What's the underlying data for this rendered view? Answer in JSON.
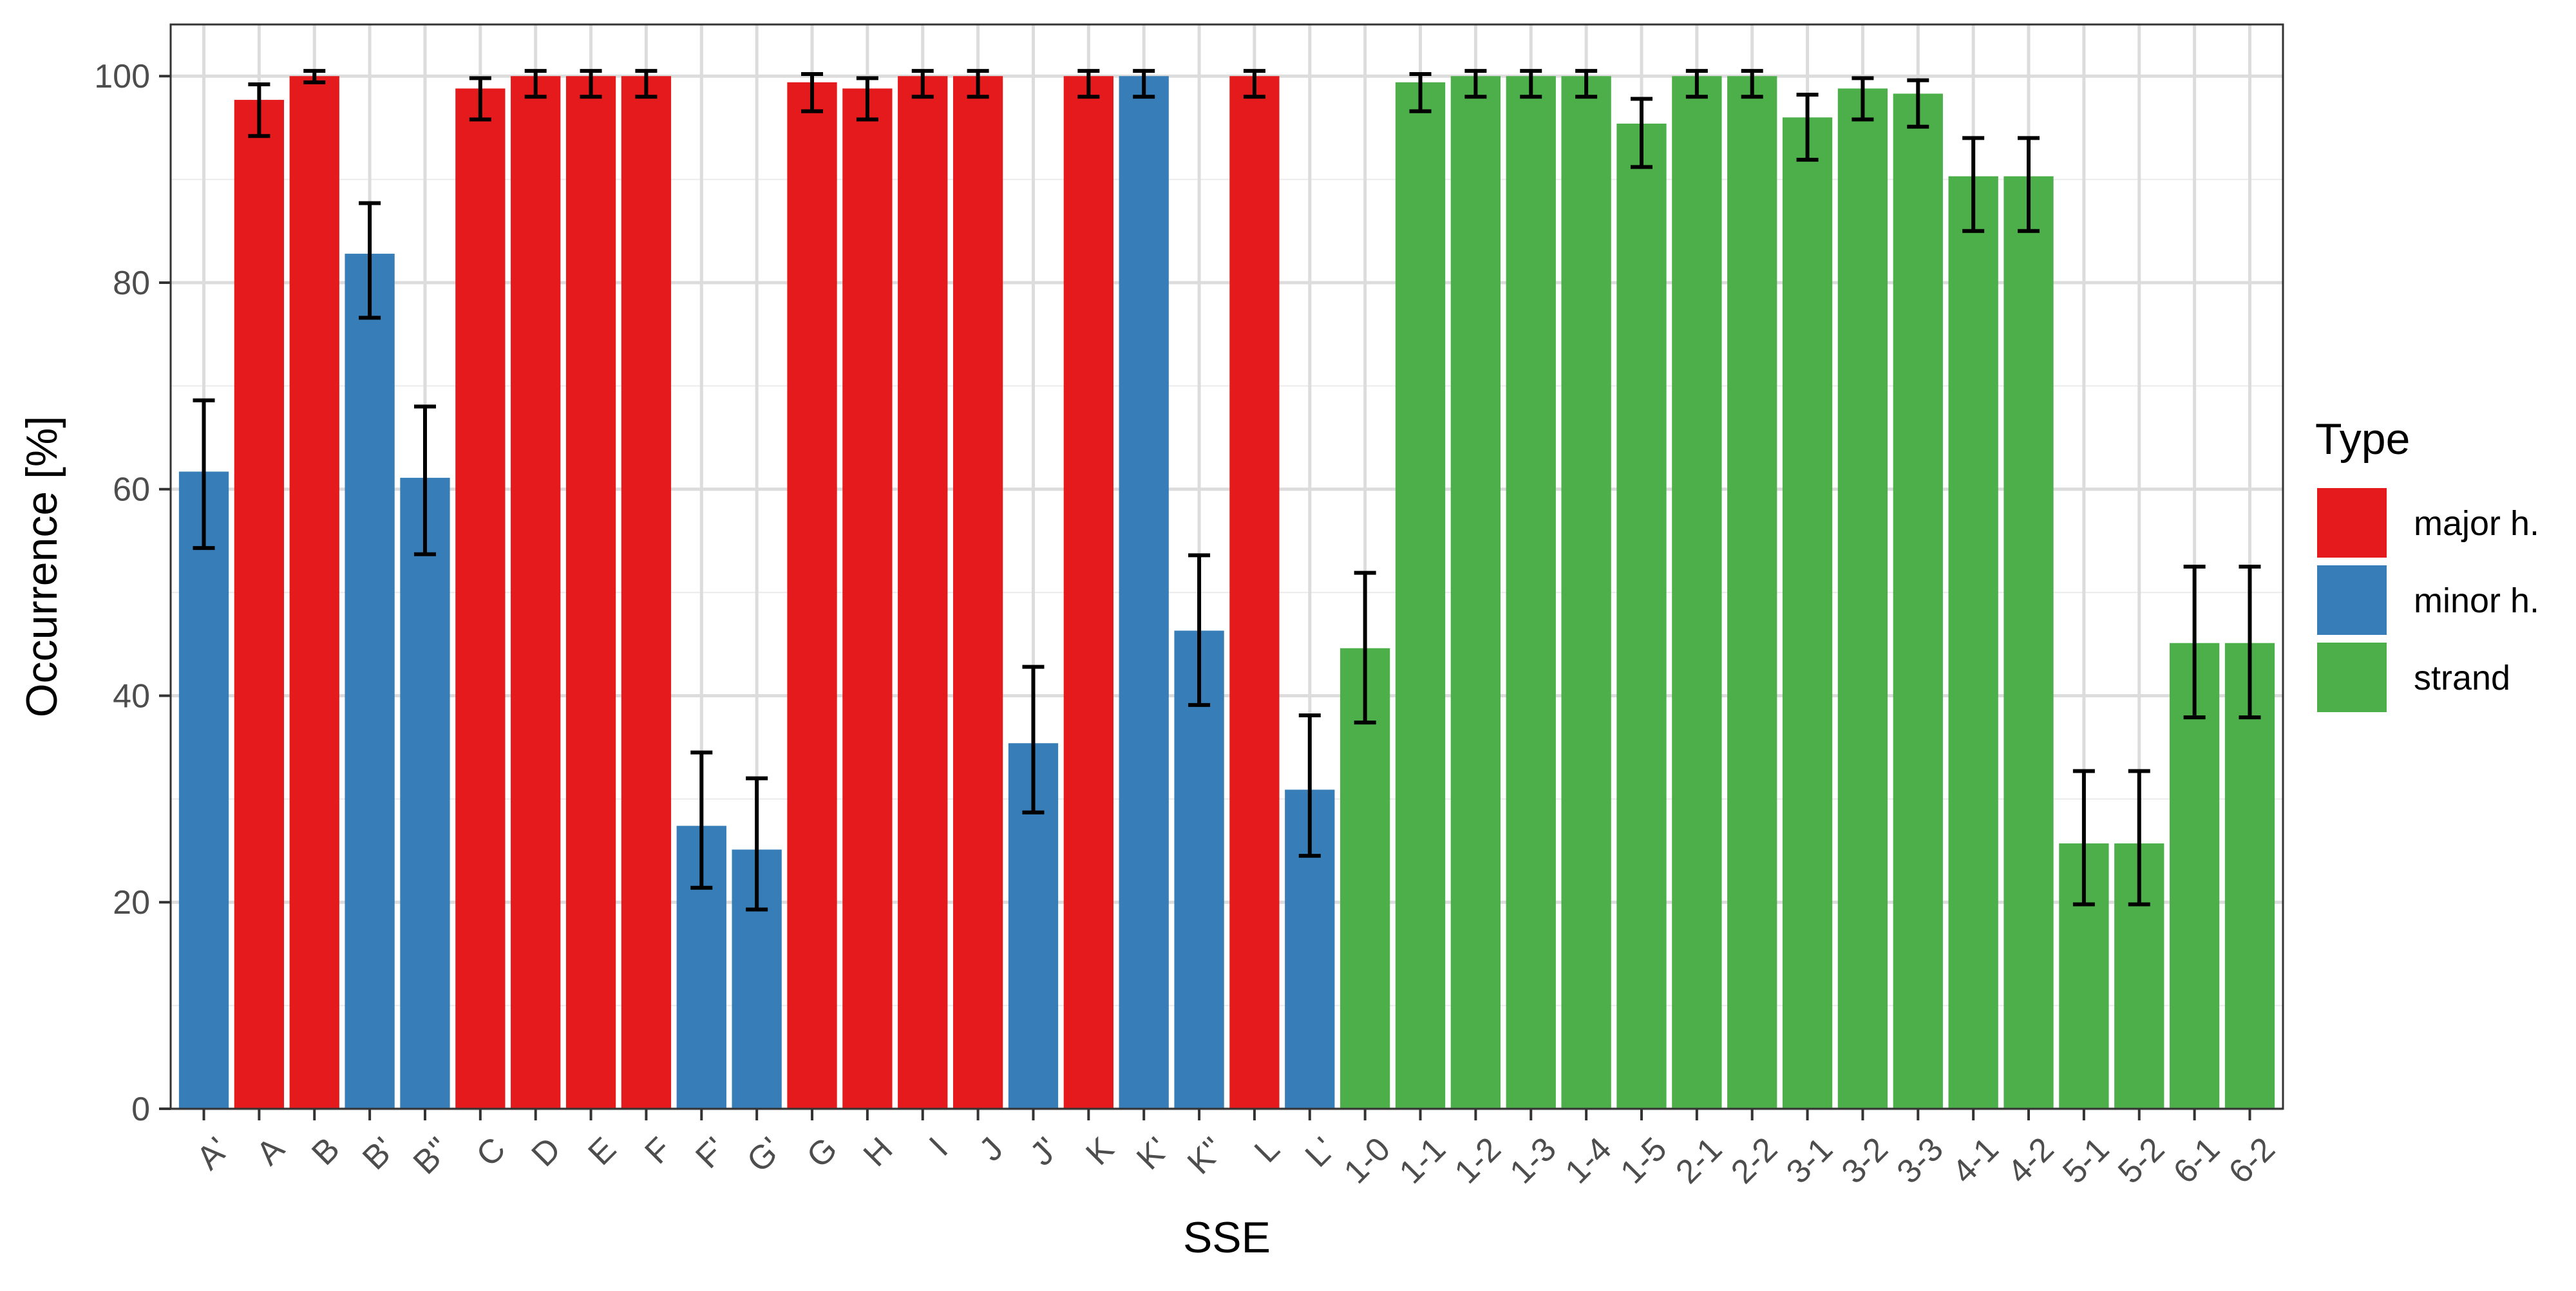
{
  "chart_data": {
    "type": "bar",
    "title": "",
    "xlabel": "SSE",
    "ylabel": "Occurrence [%]",
    "ylim": [
      0,
      105
    ],
    "yticks": [
      0,
      20,
      40,
      60,
      80,
      100
    ],
    "grid": true,
    "legend": {
      "title": "Type",
      "placement": "right",
      "entries": [
        {
          "label": "major h.",
          "color": "#E41A1C"
        },
        {
          "label": "minor h.",
          "color": "#377EB8"
        },
        {
          "label": "strand",
          "color": "#4DAF4A"
        }
      ]
    },
    "categories": [
      "A'",
      "A",
      "B",
      "B'",
      "B''",
      "C",
      "D",
      "E",
      "F",
      "F'",
      "G'",
      "G",
      "H",
      "I",
      "J",
      "J'",
      "K",
      "K'",
      "K''",
      "L",
      "L'",
      "1-0",
      "1-1",
      "1-2",
      "1-3",
      "1-4",
      "1-5",
      "2-1",
      "2-2",
      "3-1",
      "3-2",
      "3-3",
      "4-1",
      "4-2",
      "5-1",
      "5-2",
      "6-1",
      "6-2"
    ],
    "types": [
      "minor h.",
      "major h.",
      "major h.",
      "minor h.",
      "minor h.",
      "major h.",
      "major h.",
      "major h.",
      "major h.",
      "minor h.",
      "minor h.",
      "major h.",
      "major h.",
      "major h.",
      "major h.",
      "minor h.",
      "major h.",
      "minor h.",
      "minor h.",
      "major h.",
      "minor h.",
      "strand",
      "strand",
      "strand",
      "strand",
      "strand",
      "strand",
      "strand",
      "strand",
      "strand",
      "strand",
      "strand",
      "strand",
      "strand",
      "strand",
      "strand",
      "strand",
      "strand"
    ],
    "values": [
      61.7,
      97.7,
      100,
      82.8,
      61.1,
      98.8,
      100,
      100,
      100,
      27.4,
      25.1,
      99.4,
      98.8,
      100,
      100,
      35.4,
      100,
      100,
      46.3,
      100,
      30.9,
      44.6,
      99.4,
      100,
      100,
      100,
      95.4,
      100,
      100,
      96.0,
      98.8,
      98.3,
      90.3,
      90.3,
      25.7,
      25.7,
      45.1,
      45.1
    ],
    "err_low": [
      54.3,
      94.2,
      99.4,
      76.6,
      53.7,
      95.8,
      98.0,
      98.0,
      98.0,
      21.4,
      19.3,
      96.6,
      95.8,
      98.0,
      98.0,
      28.7,
      98.0,
      98.0,
      39.1,
      98.0,
      24.5,
      37.4,
      96.6,
      98.0,
      98.0,
      98.0,
      91.2,
      98.0,
      98.0,
      91.9,
      95.8,
      95.1,
      85.0,
      85.0,
      19.8,
      19.8,
      37.9,
      37.9
    ],
    "err_high": [
      68.6,
      99.2,
      100.5,
      87.7,
      68.0,
      99.8,
      100.5,
      100.5,
      100.5,
      34.5,
      32.0,
      100.2,
      99.8,
      100.5,
      100.5,
      42.8,
      100.5,
      100.5,
      53.6,
      100.5,
      38.1,
      51.9,
      100.2,
      100.5,
      100.5,
      100.5,
      97.8,
      100.5,
      100.5,
      98.2,
      99.8,
      99.6,
      94.0,
      94.0,
      32.7,
      32.7,
      52.5,
      52.5
    ]
  }
}
